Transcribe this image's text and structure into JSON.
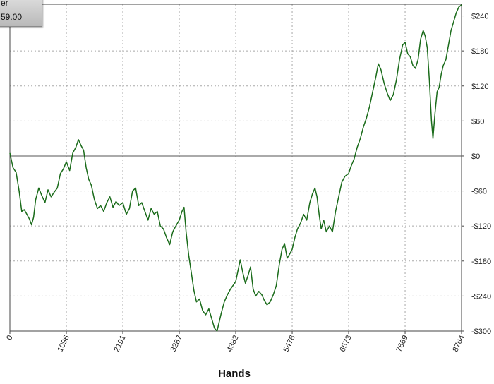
{
  "tooltip": {
    "line1": "er",
    "line2": "59.00"
  },
  "chart_data": {
    "type": "line",
    "title": "",
    "xlabel": "Hands",
    "ylabel": "",
    "x_ticks": [
      0,
      1096,
      2191,
      3287,
      4382,
      5478,
      6573,
      7669,
      8764
    ],
    "y_ticks": [
      -300,
      -240,
      -180,
      -120,
      -60,
      0,
      60,
      120,
      180,
      240
    ],
    "y_tick_labels": [
      "-$300",
      "-$240",
      "-$180",
      "-$120",
      "-$60",
      "$0",
      "$60",
      "$120",
      "$180",
      "$240"
    ],
    "xlim": [
      0,
      8764
    ],
    "ylim": [
      -300,
      260
    ],
    "grid": true,
    "zero_line": true,
    "colors": {
      "line": "#1a6b1a",
      "grid": "#a8a8a8",
      "axis": "#444444",
      "zero": "#555555"
    },
    "series": [
      {
        "points": [
          [
            0,
            5
          ],
          [
            60,
            -20
          ],
          [
            120,
            -28
          ],
          [
            180,
            -60
          ],
          [
            230,
            -95
          ],
          [
            280,
            -92
          ],
          [
            330,
            -100
          ],
          [
            380,
            -108
          ],
          [
            420,
            -118
          ],
          [
            460,
            -105
          ],
          [
            500,
            -75
          ],
          [
            560,
            -55
          ],
          [
            620,
            -68
          ],
          [
            680,
            -80
          ],
          [
            740,
            -58
          ],
          [
            800,
            -70
          ],
          [
            860,
            -62
          ],
          [
            920,
            -55
          ],
          [
            980,
            -30
          ],
          [
            1040,
            -22
          ],
          [
            1096,
            -10
          ],
          [
            1160,
            -25
          ],
          [
            1220,
            5
          ],
          [
            1280,
            15
          ],
          [
            1330,
            28
          ],
          [
            1380,
            18
          ],
          [
            1430,
            10
          ],
          [
            1480,
            -20
          ],
          [
            1530,
            -40
          ],
          [
            1580,
            -50
          ],
          [
            1640,
            -75
          ],
          [
            1700,
            -90
          ],
          [
            1760,
            -85
          ],
          [
            1820,
            -95
          ],
          [
            1880,
            -80
          ],
          [
            1940,
            -70
          ],
          [
            2000,
            -88
          ],
          [
            2060,
            -78
          ],
          [
            2120,
            -85
          ],
          [
            2191,
            -80
          ],
          [
            2260,
            -100
          ],
          [
            2320,
            -90
          ],
          [
            2380,
            -60
          ],
          [
            2440,
            -55
          ],
          [
            2500,
            -85
          ],
          [
            2560,
            -80
          ],
          [
            2620,
            -95
          ],
          [
            2680,
            -110
          ],
          [
            2740,
            -90
          ],
          [
            2800,
            -100
          ],
          [
            2860,
            -95
          ],
          [
            2920,
            -120
          ],
          [
            2980,
            -125
          ],
          [
            3040,
            -140
          ],
          [
            3100,
            -152
          ],
          [
            3160,
            -130
          ],
          [
            3220,
            -120
          ],
          [
            3287,
            -110
          ],
          [
            3340,
            -95
          ],
          [
            3380,
            -88
          ],
          [
            3420,
            -130
          ],
          [
            3470,
            -170
          ],
          [
            3520,
            -200
          ],
          [
            3570,
            -230
          ],
          [
            3620,
            -250
          ],
          [
            3680,
            -245
          ],
          [
            3740,
            -265
          ],
          [
            3800,
            -272
          ],
          [
            3860,
            -262
          ],
          [
            3920,
            -280
          ],
          [
            3970,
            -295
          ],
          [
            4020,
            -300
          ],
          [
            4060,
            -285
          ],
          [
            4100,
            -270
          ],
          [
            4160,
            -250
          ],
          [
            4220,
            -238
          ],
          [
            4280,
            -228
          ],
          [
            4330,
            -222
          ],
          [
            4382,
            -215
          ],
          [
            4430,
            -195
          ],
          [
            4470,
            -178
          ],
          [
            4520,
            -200
          ],
          [
            4570,
            -218
          ],
          [
            4620,
            -205
          ],
          [
            4670,
            -190
          ],
          [
            4720,
            -228
          ],
          [
            4770,
            -240
          ],
          [
            4830,
            -232
          ],
          [
            4890,
            -238
          ],
          [
            4940,
            -248
          ],
          [
            4990,
            -255
          ],
          [
            5050,
            -250
          ],
          [
            5110,
            -238
          ],
          [
            5170,
            -222
          ],
          [
            5230,
            -185
          ],
          [
            5280,
            -160
          ],
          [
            5330,
            -150
          ],
          [
            5380,
            -175
          ],
          [
            5430,
            -168
          ],
          [
            5478,
            -160
          ],
          [
            5530,
            -140
          ],
          [
            5580,
            -125
          ],
          [
            5640,
            -115
          ],
          [
            5700,
            -100
          ],
          [
            5760,
            -110
          ],
          [
            5820,
            -80
          ],
          [
            5870,
            -65
          ],
          [
            5920,
            -55
          ],
          [
            5960,
            -70
          ],
          [
            6000,
            -100
          ],
          [
            6040,
            -125
          ],
          [
            6090,
            -110
          ],
          [
            6140,
            -130
          ],
          [
            6200,
            -120
          ],
          [
            6260,
            -130
          ],
          [
            6320,
            -95
          ],
          [
            6380,
            -70
          ],
          [
            6440,
            -45
          ],
          [
            6500,
            -35
          ],
          [
            6573,
            -30
          ],
          [
            6620,
            -18
          ],
          [
            6680,
            -5
          ],
          [
            6740,
            15
          ],
          [
            6800,
            30
          ],
          [
            6860,
            50
          ],
          [
            6920,
            65
          ],
          [
            6980,
            85
          ],
          [
            7040,
            110
          ],
          [
            7100,
            135
          ],
          [
            7150,
            158
          ],
          [
            7200,
            148
          ],
          [
            7260,
            125
          ],
          [
            7320,
            108
          ],
          [
            7380,
            95
          ],
          [
            7440,
            105
          ],
          [
            7500,
            130
          ],
          [
            7560,
            165
          ],
          [
            7620,
            190
          ],
          [
            7669,
            195
          ],
          [
            7720,
            175
          ],
          [
            7770,
            170
          ],
          [
            7820,
            155
          ],
          [
            7870,
            150
          ],
          [
            7920,
            165
          ],
          [
            7970,
            200
          ],
          [
            8020,
            215
          ],
          [
            8060,
            205
          ],
          [
            8100,
            185
          ],
          [
            8140,
            130
          ],
          [
            8180,
            60
          ],
          [
            8210,
            30
          ],
          [
            8250,
            75
          ],
          [
            8290,
            110
          ],
          [
            8330,
            118
          ],
          [
            8370,
            140
          ],
          [
            8410,
            155
          ],
          [
            8460,
            165
          ],
          [
            8510,
            190
          ],
          [
            8560,
            215
          ],
          [
            8610,
            230
          ],
          [
            8660,
            245
          ],
          [
            8710,
            255
          ],
          [
            8764,
            259
          ]
        ]
      }
    ]
  }
}
